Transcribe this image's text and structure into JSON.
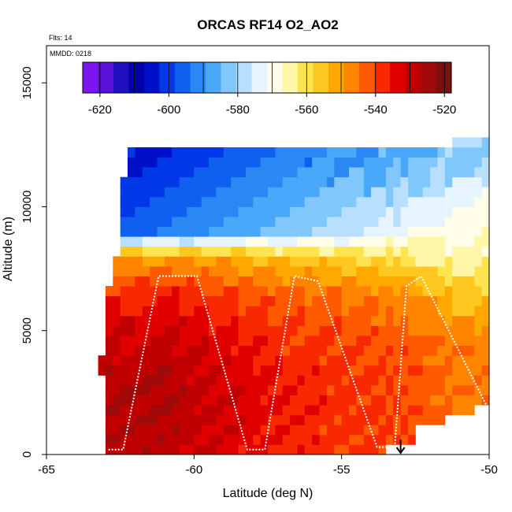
{
  "chart_data": {
    "type": "heatmap",
    "title": "ORCAS RF14 O2_AO2",
    "flights_label": "Flts: 14",
    "date_label": "MMDD: 0218",
    "xlabel": "Latitude (deg N)",
    "ylabel": "Altitude (m)",
    "xlim": [
      -65,
      -50
    ],
    "ylim": [
      0,
      16500
    ],
    "xticks": [
      -65,
      -60,
      -55,
      -50
    ],
    "yticks": [
      0,
      5000,
      10000,
      15000
    ],
    "colorbar": {
      "range": [
        -625,
        -518
      ],
      "ticks": [
        -620,
        -600,
        -580,
        -560,
        -540,
        -520
      ],
      "colors": [
        "#7b16f0",
        "#5a10d6",
        "#2010c0",
        "#0000a8",
        "#0010c8",
        "#0038e8",
        "#1060f0",
        "#2a88f5",
        "#4aa8fa",
        "#80c8fc",
        "#b8e0fe",
        "#e6f4ff",
        "#fffde8",
        "#fff6a8",
        "#ffe450",
        "#ffc820",
        "#ffa800",
        "#ff8400",
        "#ff5a00",
        "#f82800",
        "#e00000",
        "#c00000",
        "#a00a0a",
        "#7a1010"
      ]
    },
    "field_sections": [
      {
        "lat": -62.7,
        "values": [
          -528,
          -527,
          -529,
          -532,
          -538,
          -552
        ]
      },
      {
        "lat": -61.0,
        "values": [
          -529,
          -527,
          -528,
          -531,
          -536,
          -550
        ]
      },
      {
        "lat": -59.0,
        "values": [
          -532,
          -531,
          -532,
          -535,
          -540,
          -552
        ]
      },
      {
        "lat": -57.0,
        "values": [
          -537,
          -536,
          -537,
          -539,
          -543,
          -555
        ]
      },
      {
        "lat": -55.0,
        "values": [
          -539,
          -538,
          -539,
          -541,
          -545,
          -558
        ]
      },
      {
        "lat": -53.0,
        "values": [
          -540,
          -540,
          -541,
          -543,
          -548,
          -560
        ]
      },
      {
        "lat": -51.0,
        "values": [
          -545,
          -545,
          -546,
          -548,
          -556,
          -566
        ]
      }
    ],
    "section_altitudes": [
      500,
      2000,
      3500,
      5000,
      6500,
      8000
    ],
    "upper_field": {
      "altitudes": [
        9000,
        10000,
        11000,
        12000
      ],
      "lat_west": [
        -596,
        -600,
        -603,
        -605
      ],
      "lat_east": [
        -566,
        -570,
        -575,
        -580
      ]
    },
    "flight_track": [
      {
        "lat": -62.9,
        "alt": 200
      },
      {
        "lat": -62.4,
        "alt": 200
      },
      {
        "lat": -61.2,
        "alt": 7200
      },
      {
        "lat": -59.9,
        "alt": 7200
      },
      {
        "lat": -58.2,
        "alt": 200
      },
      {
        "lat": -57.6,
        "alt": 200
      },
      {
        "lat": -56.6,
        "alt": 7200
      },
      {
        "lat": -55.8,
        "alt": 7000
      },
      {
        "lat": -53.8,
        "alt": 300
      },
      {
        "lat": -53.2,
        "alt": 300
      },
      {
        "lat": -52.8,
        "alt": 6800
      },
      {
        "lat": -52.3,
        "alt": 7200
      },
      {
        "lat": -50.1,
        "alt": 2000
      }
    ],
    "arrow_marker": {
      "lat": -53.0,
      "alt": 600
    }
  }
}
